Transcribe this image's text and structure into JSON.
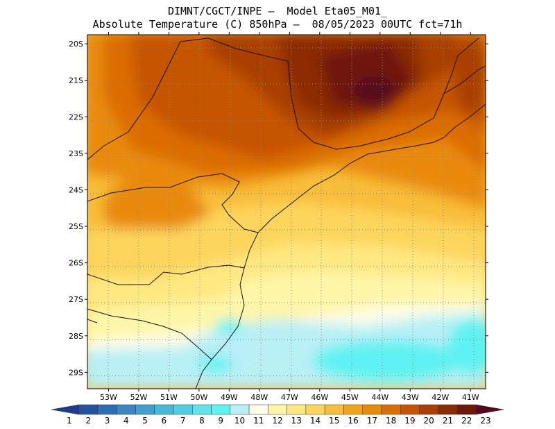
{
  "header": {
    "line1": "DIMNT/CGCT/INPE –  Model Eta05_M01_",
    "line2": "Absolute Temperature (C) 850hPa –  08/05/2023 00UTC fct=71h"
  },
  "axes": {
    "lat_labels": [
      "20S",
      "21S",
      "22S",
      "23S",
      "24S",
      "25S",
      "26S",
      "27S",
      "28S",
      "29S"
    ],
    "lon_labels": [
      "53W",
      "52W",
      "51W",
      "50W",
      "49W",
      "48W",
      "47W",
      "46W",
      "45W",
      "44W",
      "43W",
      "42W",
      "41W"
    ],
    "lon_range": [
      -53.7,
      -40.5
    ],
    "lat_range": [
      -29.45,
      -19.75
    ]
  },
  "colorbar": {
    "labels": [
      "1",
      "2",
      "3",
      "4",
      "5",
      "6",
      "7",
      "8",
      "9",
      "10",
      "11",
      "12",
      "13",
      "14",
      "15",
      "16",
      "17",
      "18",
      "19",
      "20",
      "21",
      "22",
      "23"
    ],
    "colors": [
      "#1f3c8c",
      "#2553a3",
      "#2e6cb6",
      "#3a86c5",
      "#3fa0d0",
      "#48b8da",
      "#4ecee2",
      "#5fe2ea",
      "#5ff2f2",
      "#b8f0f6",
      "#fffdea",
      "#fff6a8",
      "#ffe881",
      "#fdd55c",
      "#f8bd3a",
      "#f2a417",
      "#e98a08",
      "#dc6d04",
      "#c65503",
      "#a93f03",
      "#8c2a02",
      "#701807",
      "#55081f"
    ]
  },
  "map": {
    "field": "Absolute Temperature",
    "units": "C",
    "level": "850hPa"
  }
}
